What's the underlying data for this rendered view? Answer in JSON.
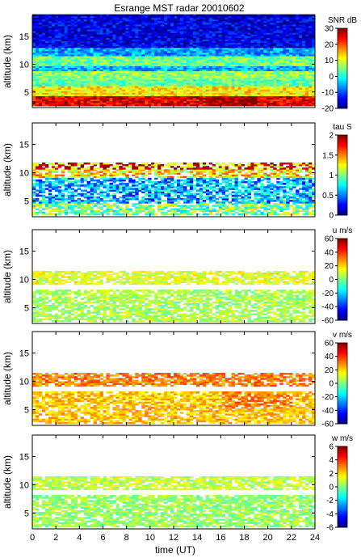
{
  "chart_data": {
    "type": "heatmap",
    "title": "Esrange MST radar 20010602",
    "xlabel": "time (UT)",
    "xlim": [
      0,
      24
    ],
    "x_ticks": [
      0,
      2,
      4,
      6,
      8,
      10,
      12,
      14,
      16,
      18,
      20,
      22,
      24
    ],
    "ylim": [
      2.2,
      18.8
    ],
    "y_ticks": [
      5,
      10,
      15
    ],
    "colormap": "jet",
    "panels": [
      {
        "name": "snr",
        "ylabel": "altitude (km)",
        "colorbar_title": "SNR dB",
        "clim": [
          -20,
          30
        ],
        "colorbar_ticks": [
          30,
          20,
          10,
          0,
          -10,
          -20
        ],
        "structure": [
          {
            "alt": [
              2.5,
              4.0
            ],
            "value": 25
          },
          {
            "alt": [
              4.0,
              6.0
            ],
            "value": 12
          },
          {
            "alt": [
              6.0,
              7.0
            ],
            "value": 3
          },
          {
            "alt": [
              7.0,
              8.5
            ],
            "value": 6
          },
          {
            "alt": [
              8.5,
              9.5
            ],
            "value": -5
          },
          {
            "alt": [
              9.5,
              11.5
            ],
            "value": 4
          },
          {
            "alt": [
              11.5,
              13.0
            ],
            "value": -6
          },
          {
            "alt": [
              13.0,
              18.8
            ],
            "value": -15
          }
        ]
      },
      {
        "name": "fading_time",
        "ylabel": "altitude (km)",
        "colorbar_title": "tau S",
        "clim": [
          0,
          2
        ],
        "colorbar_ticks": [
          2,
          1.5,
          1,
          0.5,
          0
        ],
        "structure": [
          {
            "alt": [
              2.5,
              4.5
            ],
            "value": 1.0
          },
          {
            "alt": [
              4.5,
              9.0
            ],
            "value": 0.6
          },
          {
            "alt": [
              9.0,
              10.5
            ],
            "value": 1.3
          },
          {
            "alt": [
              10.5,
              11.7
            ],
            "value": 1.8
          }
        ]
      },
      {
        "name": "zonal_wind",
        "ylabel": "altitude (km)",
        "colorbar_title": "u m/s",
        "clim": [
          -60,
          60
        ],
        "colorbar_ticks": [
          60,
          40,
          20,
          0,
          -20,
          -40,
          -60
        ],
        "structure": [
          {
            "alt": [
              2.5,
              8.0
            ],
            "value": 5
          },
          {
            "alt": [
              9.0,
              11.5
            ],
            "value": 12
          }
        ]
      },
      {
        "name": "meridional_wind",
        "ylabel": "altitude (km)",
        "colorbar_title": "v m/s",
        "clim": [
          -60,
          60
        ],
        "colorbar_ticks": [
          60,
          40,
          20,
          0,
          -20,
          -40,
          -60
        ],
        "structure": [
          {
            "alt": [
              2.5,
              8.0
            ],
            "value": 22
          },
          {
            "alt": [
              9.0,
              11.5
            ],
            "value": 30
          }
        ]
      },
      {
        "name": "vertical_wind",
        "ylabel": "altitude (km)",
        "colorbar_title": "w m/s",
        "clim": [
          -6,
          6
        ],
        "colorbar_ticks": [
          6,
          4,
          2,
          0,
          -2,
          -4,
          -6
        ],
        "structure": [
          {
            "alt": [
              2.5,
              8.0
            ],
            "value": 0.3
          },
          {
            "alt": [
              9.0,
              11.5
            ],
            "value": 0.8
          }
        ]
      }
    ]
  }
}
